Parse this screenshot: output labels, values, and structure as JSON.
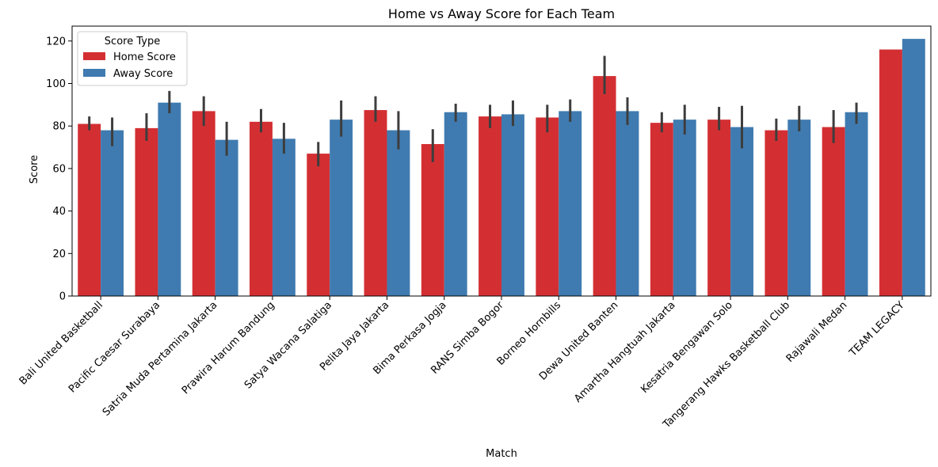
{
  "chart_data": {
    "type": "bar",
    "title": "Home vs Away Score for Each Team",
    "xlabel": "Match",
    "ylabel": "Score",
    "ylim": [
      0,
      127
    ],
    "yticks": [
      0,
      20,
      40,
      60,
      80,
      100,
      120
    ],
    "grid": false,
    "legend": {
      "title": "Score Type",
      "placement": "top-left"
    },
    "categories": [
      "Bali United Basketball",
      "Pacific Caesar Surabaya",
      "Satria Muda Pertamina Jakarta",
      "Prawira Harum Bandung",
      "Satya Wacana Salatiga",
      "Pelita Jaya Jakarta",
      "Bima Perkasa Jogja",
      "RANS Simba Bogor",
      "Borneo Hornbills",
      "Dewa United Banten",
      "Amartha Hangtuah Jakarta",
      "Kesatria Bengawan Solo",
      "Tangerang Hawks Basketball Club",
      "Rajawali Medan",
      "TEAM LEGACY"
    ],
    "series": [
      {
        "name": "Home Score",
        "color": "#d32f33",
        "values": [
          81,
          79,
          87,
          82,
          67,
          87.5,
          71.5,
          84.5,
          84,
          103.5,
          81.5,
          83,
          78,
          79.5,
          116
        ],
        "error_low": [
          78,
          73,
          80,
          77,
          61,
          82,
          63,
          79,
          77,
          95,
          77,
          78,
          73,
          72,
          null
        ],
        "error_high": [
          84.5,
          86,
          94,
          88,
          72.5,
          94,
          78.5,
          90,
          90,
          113,
          86.5,
          89,
          83.5,
          87.5,
          null
        ]
      },
      {
        "name": "Away Score",
        "color": "#3f7bb0",
        "values": [
          78,
          91,
          73.5,
          74,
          83,
          78,
          86.5,
          85.5,
          87,
          87,
          83,
          79.5,
          83,
          86.5,
          121
        ],
        "error_low": [
          70.5,
          86,
          66,
          67,
          75,
          69,
          82,
          80,
          82,
          80.5,
          76,
          69.5,
          77.5,
          81,
          null
        ],
        "error_high": [
          84,
          96.5,
          82,
          81.5,
          92,
          87,
          90.5,
          92,
          92.5,
          93.5,
          90,
          89.5,
          89.5,
          91,
          null
        ]
      }
    ]
  }
}
